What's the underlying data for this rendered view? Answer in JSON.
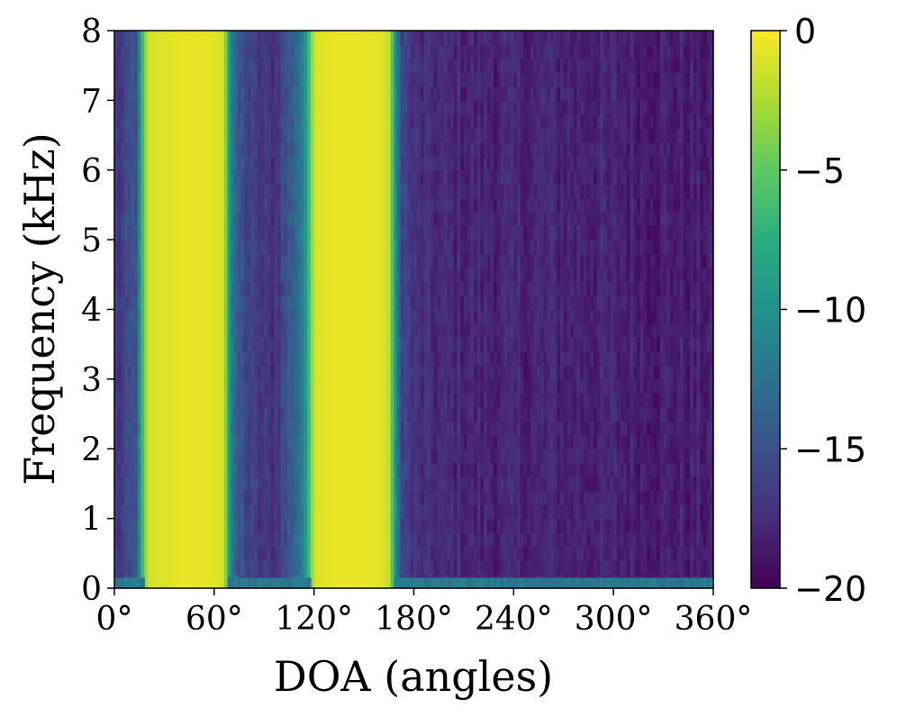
{
  "chart_data": {
    "type": "heatmap",
    "title": "",
    "xlabel": "DOA (angles)",
    "ylabel": "Frequency (kHz)",
    "xlim": [
      0,
      360
    ],
    "ylim": [
      0,
      8
    ],
    "xticks": [
      0,
      60,
      120,
      180,
      240,
      300,
      360
    ],
    "xtick_labels": [
      "0°",
      "60°",
      "120°",
      "180°",
      "240°",
      "300°",
      "360°"
    ],
    "yticks": [
      0,
      1,
      2,
      3,
      4,
      5,
      6,
      7,
      8
    ],
    "ytick_labels": [
      "0",
      "1",
      "2",
      "3",
      "4",
      "5",
      "6",
      "7",
      "8"
    ],
    "colormap": "viridis",
    "colorbar": {
      "range": [
        -20,
        0
      ],
      "ticks": [
        0,
        -5,
        -10,
        -15,
        -20
      ],
      "tick_labels": [
        "0",
        "−5",
        "−10",
        "−15",
        "−20"
      ]
    },
    "angle_profile": {
      "doa": [
        0,
        8,
        14,
        16,
        20,
        40,
        60,
        66,
        69,
        72,
        80,
        88,
        96,
        104,
        112,
        116,
        120,
        130,
        150,
        160,
        166,
        168,
        172,
        180,
        220,
        280,
        360
      ],
      "level_db": [
        -17,
        -16,
        -14,
        -8,
        -1.3,
        -0.6,
        -0.7,
        -1.5,
        -9,
        -14,
        -16,
        -17,
        -17,
        -15,
        -12,
        -8,
        -1.3,
        -0.6,
        -0.6,
        -0.8,
        -2,
        -9,
        -15,
        -17.5,
        -18,
        -18,
        -18.5
      ]
    },
    "low_frequency_band": {
      "frequency_khz": [
        0,
        0.15
      ],
      "level_db": -12
    }
  }
}
